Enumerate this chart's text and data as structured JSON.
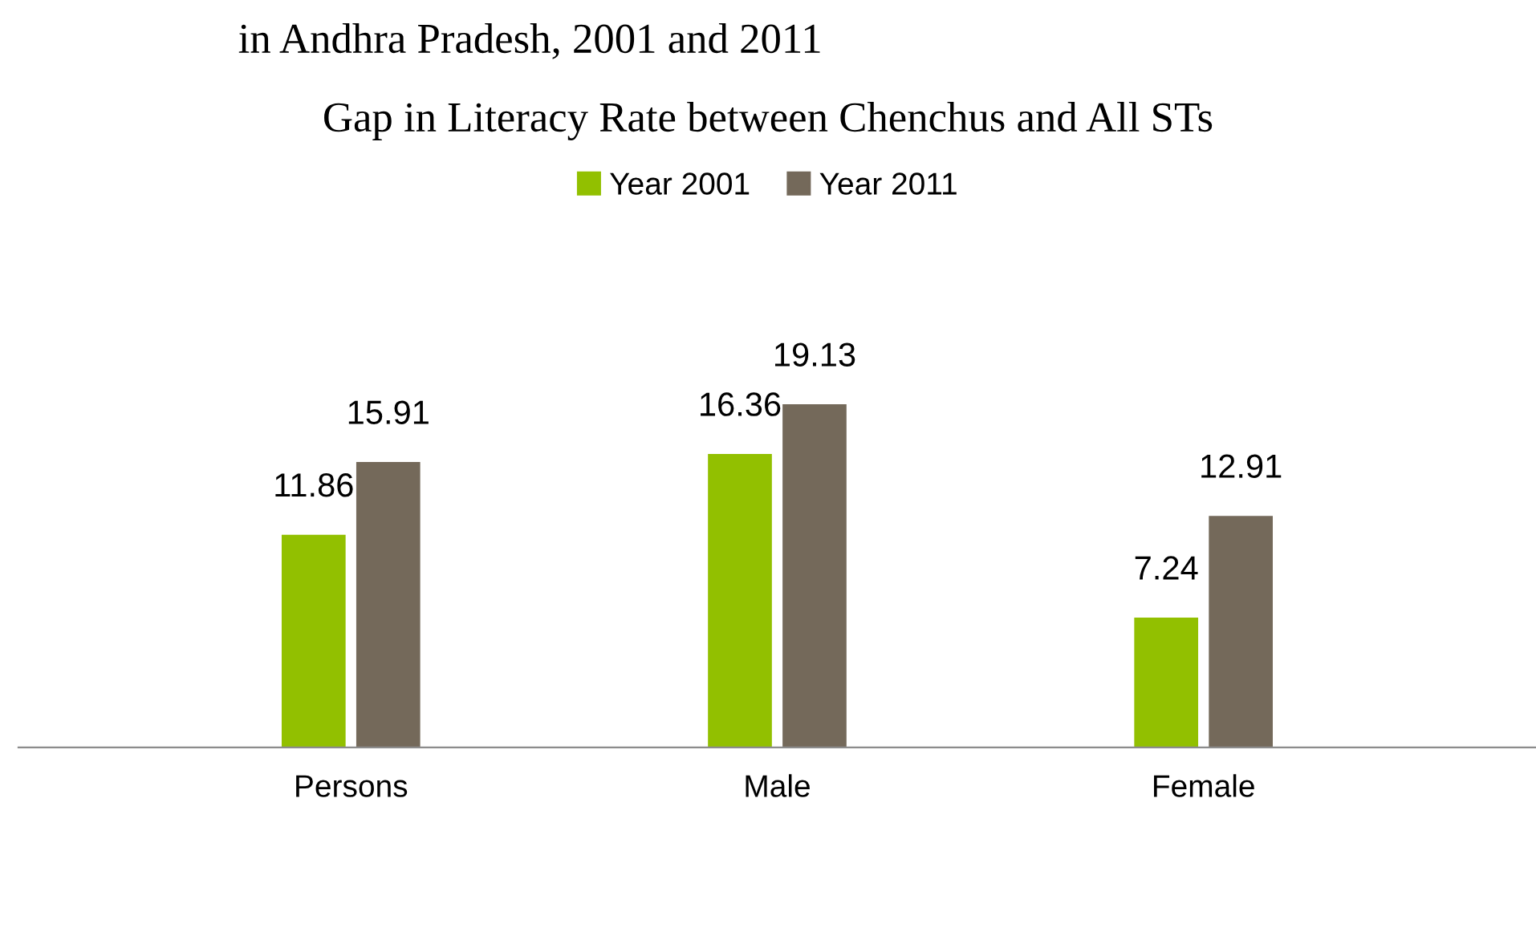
{
  "chart_data": {
    "type": "bar",
    "title": "Gap in Literacy Rate between Chenchus and All STs",
    "annotations": [
      "in Andhra Pradesh, 2001 and 2011"
    ],
    "categories": [
      "Persons",
      "Male",
      "Female"
    ],
    "series": [
      {
        "name": "Year 2001",
        "color": "#92c000",
        "values": [
          11.86,
          16.36,
          7.24
        ]
      },
      {
        "name": "Year 2011",
        "color": "#74695a",
        "values": [
          15.91,
          19.13,
          12.91
        ]
      }
    ],
    "data_labels": true,
    "legend": "top",
    "grid": false
  }
}
